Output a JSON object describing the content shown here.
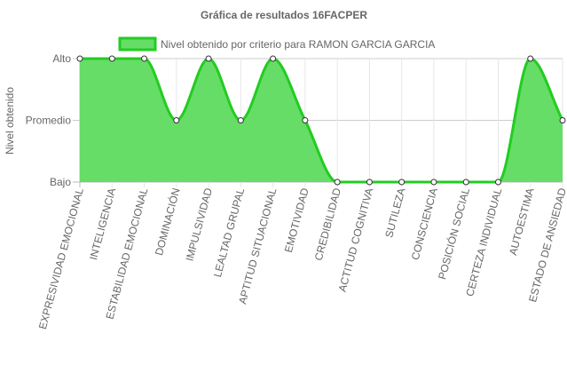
{
  "chart_data": {
    "type": "line",
    "title": "Gráfica de resultados 16FACPER",
    "ylabel": "Nivel obtenido",
    "xlabel": "",
    "y_levels": [
      "Bajo",
      "Promedio",
      "Alto"
    ],
    "ylim": [
      0,
      2
    ],
    "categories": [
      "EXPRESIVIDAD EMOCIONAL",
      "INTELIGENCIA",
      "ESTABILIDAD EMOCIONAL",
      "DOMINACIÓN",
      "IMPULSIVIDAD",
      "LEALTAD GRUPAL",
      "APTITUD SITUACIONAL",
      "EMOTIVIDAD",
      "CREDIBILIDAD",
      "ACTITUD COGNITIVA",
      "SUTILEZA",
      "CONSCIENCIA",
      "POSICIÓN SOCIAL",
      "CERTEZA INDIVIDUAL",
      "AUTOESTIMA",
      "ESTADO DE ANSIEDAD"
    ],
    "series": [
      {
        "name": "Nivel obtenido por criterio para RAMON GARCIA GARCIA",
        "values": [
          2,
          2,
          2,
          1,
          2,
          1,
          2,
          1,
          0,
          0,
          0,
          0,
          0,
          0,
          2,
          1
        ]
      }
    ],
    "colors": {
      "fill": "#66dd66",
      "line": "#22cc22",
      "point_fill": "#ffffff",
      "point_stroke": "#333333",
      "grid": "#e6e6e6",
      "text": "#666666"
    },
    "legend_position": "top",
    "grid": true
  }
}
